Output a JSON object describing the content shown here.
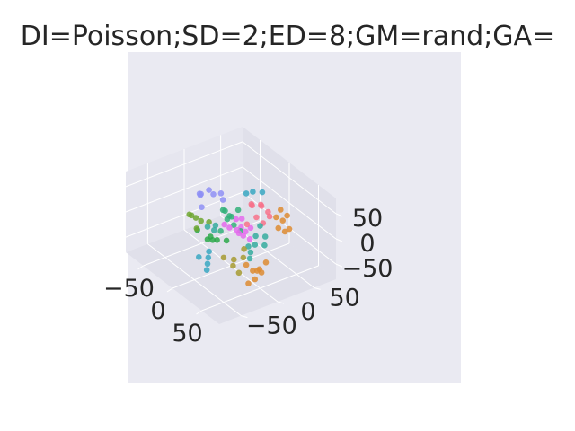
{
  "chart_data": {
    "type": "scatter",
    "projection": "3d",
    "title": "DI=Poisson;SD=2;ED=8;GM=rand;GA=",
    "grid": true,
    "legend": "none",
    "x_ticks": [
      "−50",
      "0",
      "50"
    ],
    "y_ticks": [
      "−50",
      "0",
      "50"
    ],
    "z_ticks": [
      "−50",
      "0",
      "50"
    ],
    "xlim": [
      -80,
      80
    ],
    "ylim": [
      -80,
      80
    ],
    "zlim": [
      -80,
      80
    ],
    "colors": {
      "background": "#EAEAF2",
      "pane": "#E0E0EA",
      "grid": "#FFFFFF",
      "text": "#262626"
    },
    "series_colors": [
      "#F77189",
      "#DD8B31",
      "#A69A31",
      "#6FA631",
      "#33B07A",
      "#35AB9F",
      "#38A7C2",
      "#8E8FF4",
      "#E46BED",
      "#2BA84A"
    ],
    "points_note_removed": true,
    "points": [
      [
        -40,
        -10,
        30,
        7
      ],
      [
        -45,
        -5,
        25,
        7
      ],
      [
        -30,
        0,
        35,
        7
      ],
      [
        -50,
        10,
        20,
        7
      ],
      [
        -35,
        -15,
        40,
        7
      ],
      [
        -20,
        5,
        30,
        7
      ],
      [
        -42,
        20,
        15,
        7
      ],
      [
        -25,
        -20,
        25,
        7
      ],
      [
        -30,
        -30,
        10,
        3
      ],
      [
        -20,
        -25,
        5,
        3
      ],
      [
        -35,
        -20,
        -5,
        3
      ],
      [
        -15,
        -35,
        0,
        3
      ],
      [
        -25,
        -10,
        -10,
        3
      ],
      [
        -40,
        -25,
        0,
        3
      ],
      [
        -10,
        0,
        20,
        4
      ],
      [
        -5,
        5,
        10,
        4
      ],
      [
        0,
        -5,
        15,
        4
      ],
      [
        5,
        0,
        5,
        4
      ],
      [
        -15,
        10,
        0,
        4
      ],
      [
        10,
        5,
        -5,
        4
      ],
      [
        -5,
        -10,
        -10,
        4
      ],
      [
        0,
        10,
        25,
        4
      ],
      [
        -20,
        5,
        10,
        4
      ],
      [
        -10,
        -20,
        -20,
        9
      ],
      [
        -5,
        -15,
        -25,
        9
      ],
      [
        0,
        -25,
        -15,
        9
      ],
      [
        -15,
        -20,
        -30,
        9
      ],
      [
        5,
        -10,
        -20,
        9
      ],
      [
        -20,
        -30,
        -10,
        9
      ],
      [
        10,
        20,
        40,
        0
      ],
      [
        20,
        25,
        45,
        0
      ],
      [
        15,
        30,
        35,
        0
      ],
      [
        25,
        15,
        30,
        0
      ],
      [
        30,
        20,
        20,
        0
      ],
      [
        5,
        25,
        30,
        0
      ],
      [
        20,
        35,
        25,
        0
      ],
      [
        15,
        10,
        10,
        0
      ],
      [
        35,
        25,
        35,
        0
      ],
      [
        40,
        30,
        35,
        1
      ],
      [
        45,
        35,
        30,
        1
      ],
      [
        50,
        25,
        25,
        1
      ],
      [
        35,
        40,
        40,
        1
      ],
      [
        55,
        30,
        20,
        1
      ],
      [
        40,
        45,
        30,
        1
      ],
      [
        50,
        40,
        15,
        1
      ],
      [
        50,
        -10,
        -40,
        1
      ],
      [
        55,
        -5,
        -35,
        1
      ],
      [
        60,
        -15,
        -45,
        1
      ],
      [
        45,
        0,
        -50,
        1
      ],
      [
        65,
        -10,
        -30,
        1
      ],
      [
        55,
        -20,
        -55,
        1
      ],
      [
        60,
        0,
        -20,
        1
      ],
      [
        45,
        -15,
        -30,
        1
      ],
      [
        30,
        -20,
        -30,
        2
      ],
      [
        35,
        -25,
        -35,
        2
      ],
      [
        40,
        -15,
        -20,
        2
      ],
      [
        25,
        -30,
        -25,
        2
      ],
      [
        45,
        -25,
        -40,
        2
      ],
      [
        35,
        -10,
        -10,
        2
      ],
      [
        10,
        0,
        0,
        8
      ],
      [
        15,
        5,
        -10,
        8
      ],
      [
        20,
        -5,
        5,
        8
      ],
      [
        5,
        10,
        -5,
        8
      ],
      [
        25,
        0,
        10,
        8
      ],
      [
        15,
        15,
        0,
        8
      ],
      [
        -5,
        -5,
        0,
        8
      ],
      [
        0,
        15,
        5,
        8
      ],
      [
        20,
        10,
        -15,
        8
      ],
      [
        10,
        -10,
        10,
        8
      ],
      [
        -10,
        15,
        -5,
        8
      ],
      [
        30,
        10,
        0,
        5
      ],
      [
        35,
        5,
        -10,
        5
      ],
      [
        40,
        15,
        5,
        5
      ],
      [
        25,
        20,
        10,
        5
      ],
      [
        45,
        10,
        -5,
        5
      ],
      [
        30,
        0,
        -15,
        5
      ],
      [
        5,
        -35,
        -40,
        6
      ],
      [
        10,
        -40,
        -45,
        6
      ],
      [
        0,
        -30,
        -35,
        6
      ],
      [
        15,
        -45,
        -50,
        6
      ],
      [
        -5,
        -40,
        -45,
        6
      ],
      [
        0,
        30,
        50,
        6
      ],
      [
        10,
        35,
        55,
        6
      ],
      [
        -5,
        25,
        45,
        6
      ],
      [
        -15,
        -20,
        -5,
        5
      ],
      [
        -10,
        -15,
        -10,
        5
      ],
      [
        -20,
        -5,
        -15,
        5
      ],
      [
        40,
        -5,
        -15,
        5
      ],
      [
        45,
        -10,
        -20,
        5
      ]
    ]
  }
}
